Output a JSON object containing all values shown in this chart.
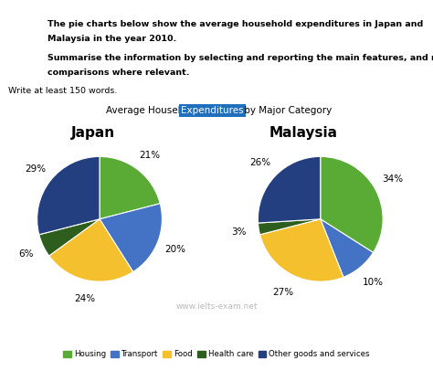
{
  "title_part1": "Average Household ",
  "title_highlight": "Expenditures",
  "title_part2": " by Major Category",
  "chart1_title": "Japan",
  "chart2_title": "Malaysia",
  "japan_values": [
    21,
    20,
    24,
    6,
    29
  ],
  "malaysia_values": [
    34,
    10,
    27,
    3,
    26
  ],
  "categories": [
    "Housing",
    "Transport",
    "Food",
    "Health care",
    "Other goods and services"
  ],
  "colors": [
    "#5AAB35",
    "#4472C4",
    "#F5C02E",
    "#2E5E1E",
    "#243F80"
  ],
  "japan_labels": [
    "21%",
    "20%",
    "24%",
    "6%",
    "29%"
  ],
  "malaysia_labels": [
    "34%",
    "10%",
    "27%",
    "3%",
    "26%"
  ],
  "watermark": "www.ielts-exam.net",
  "header_line1": "The pie charts below show the average household expenditures in Japan and",
  "header_line2": "Malaysia in the year 2010.",
  "header_line3": "Summarise the information by selecting and reporting the main features, and make",
  "header_line4": "comparisons where relevant.",
  "header_line5": "Write at least 150 words.",
  "highlight_bg": "#1F6FBD",
  "highlight_fg": "#FFFFFF",
  "background_color": "#FFFFFF"
}
